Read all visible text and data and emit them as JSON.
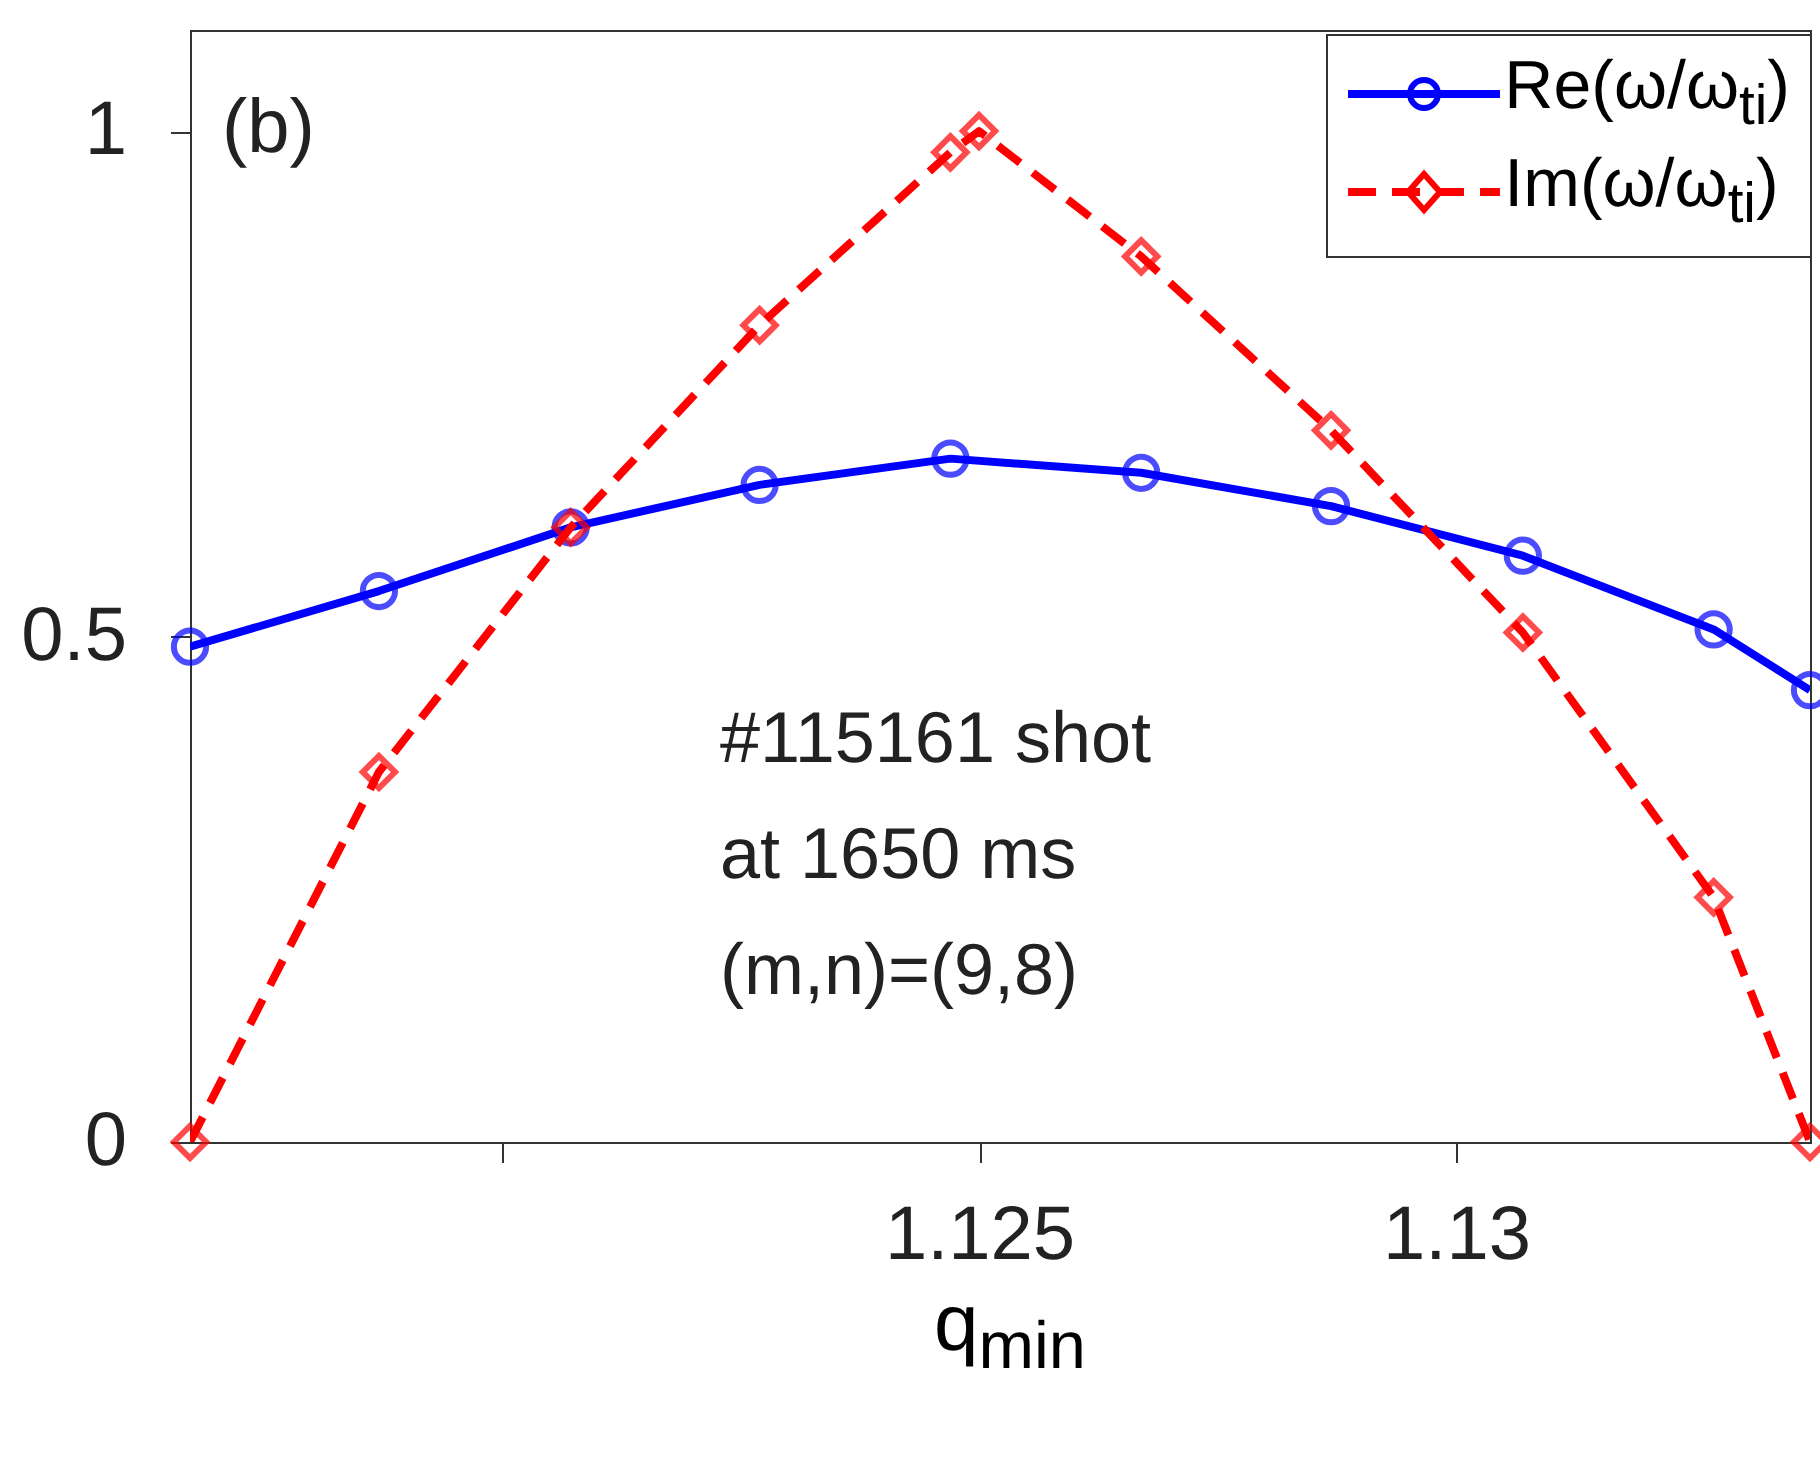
{
  "chart_data": {
    "type": "line",
    "xlabel": "q$_{min}$",
    "xlim": [
      1.11673,
      1.13371
    ],
    "xticks": [
      {
        "value": 1.12,
        "label": null
      },
      1.125,
      1.13
    ],
    "ylim": [
      0,
      1.1
    ],
    "yticks": [
      0,
      0.5,
      1
    ],
    "grid": false,
    "legend": "top right",
    "annotations": [
      "(b)",
      "#115161 shot",
      "at 1650 ms",
      "(m,n)=(9,8)"
    ],
    "series": [
      {
        "name": "Re(ω/ω$_{ti}$)",
        "color": "#0000ff",
        "marker": "circle",
        "line_style": "solid",
        "x": [
          1.11673,
          1.11871,
          1.12072,
          1.1227,
          1.1247,
          1.1267,
          1.12869,
          1.1307,
          1.1327,
          1.13371
        ],
        "values": [
          0.49,
          0.545,
          0.608,
          0.65,
          0.676,
          0.662,
          0.629,
          0.58,
          0.507,
          0.447
        ]
      },
      {
        "name": "Im(ω/ω$_{ti}$)",
        "color": "#ff0000",
        "marker": "diamond",
        "line_style": "dashed",
        "x": [
          1.11673,
          1.11871,
          1.12072,
          1.1227,
          1.1247,
          1.125,
          1.1267,
          1.12869,
          1.1307,
          1.1327,
          1.13371
        ],
        "values": [
          0,
          0.366,
          0.608,
          0.808,
          0.979,
          1.0,
          0.876,
          0.704,
          0.504,
          0.242,
          0
        ]
      }
    ]
  }
}
